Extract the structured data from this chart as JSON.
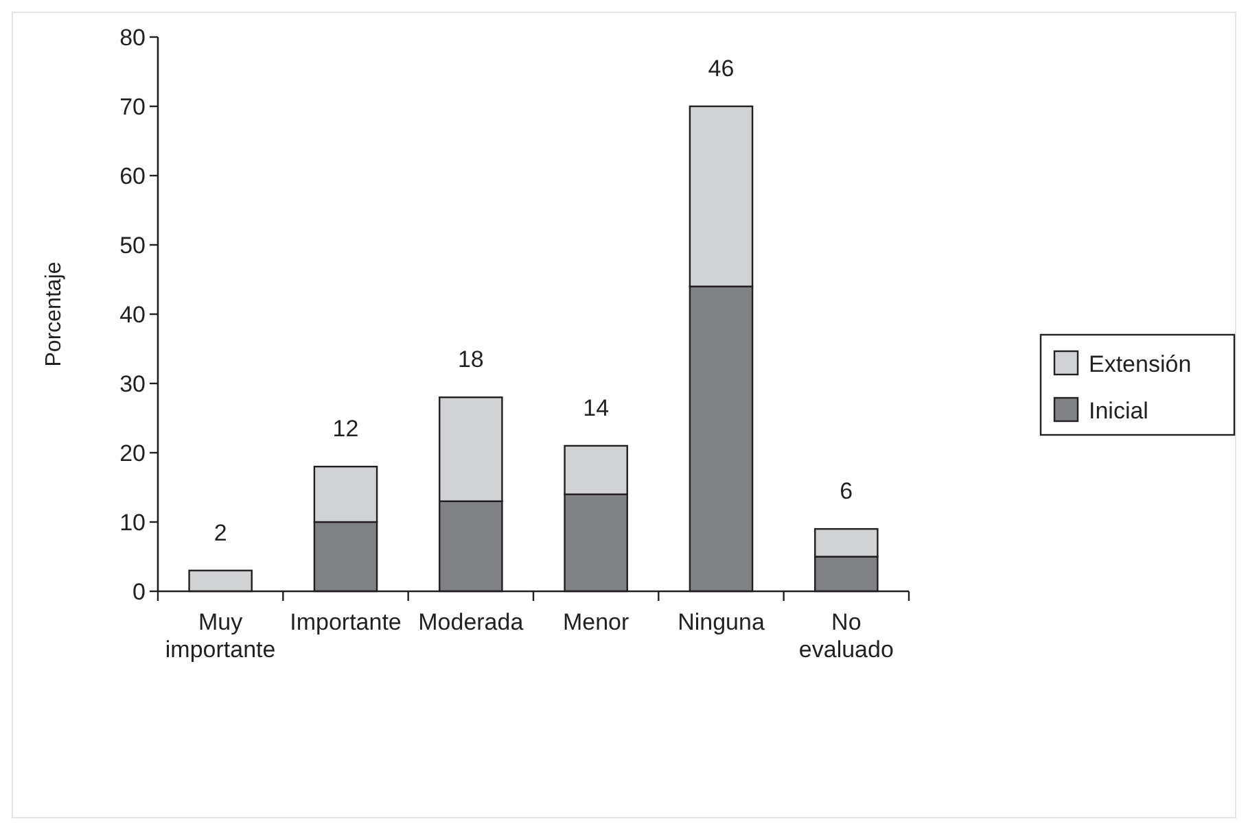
{
  "chart_data": {
    "type": "bar",
    "ylabel": "Porcentaje",
    "categories": [
      "Muy importante",
      "Importante",
      "Moderada",
      "Menor",
      "Ninguna",
      "No evaluado"
    ],
    "stacked": true,
    "series": [
      {
        "name": "Inicial",
        "color": "#808185",
        "values": [
          0,
          10,
          13,
          14,
          44,
          5
        ]
      },
      {
        "name": "Extensión",
        "color": "#d1d2d4",
        "values": [
          3,
          8,
          15,
          7,
          26,
          4
        ]
      }
    ],
    "annotations": [
      {
        "text": "2",
        "x": "Muy importante",
        "y": 3
      },
      {
        "text": "12",
        "x": "Importante",
        "y": 18
      },
      {
        "text": "18",
        "x": "Moderada",
        "y": 28
      },
      {
        "text": "14",
        "x": "Menor",
        "y": 21
      },
      {
        "text": "46",
        "x": "Ninguna",
        "y": 70
      },
      {
        "text": "6",
        "x": "No evaluado",
        "y": 9
      }
    ],
    "ylim": [
      0,
      80
    ],
    "yticks": [
      0,
      10,
      20,
      30,
      40,
      50,
      60,
      70,
      80
    ],
    "grid": false,
    "legend": "right"
  }
}
